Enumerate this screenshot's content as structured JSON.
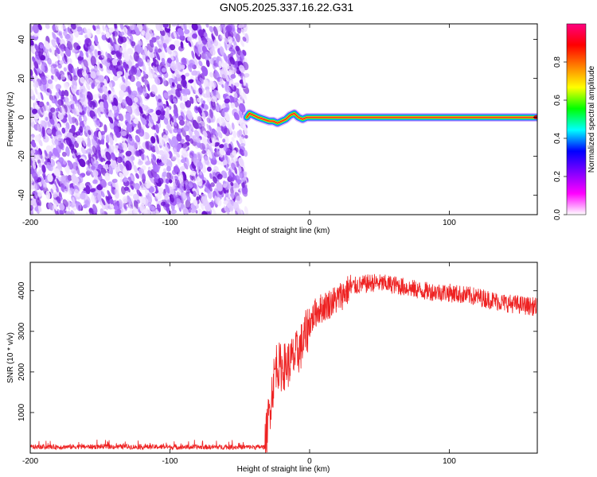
{
  "figure": {
    "title": "GN05.2025.337.16.22.G31"
  },
  "chart_data": [
    {
      "type": "heatmap",
      "xlabel": "Height of straight line (km)",
      "ylabel": "Frequency (Hz)",
      "xlim": [
        -200,
        163
      ],
      "ylim": [
        -50,
        48
      ],
      "x_ticks": [
        -200,
        -100,
        0,
        100
      ],
      "y_ticks": [
        -40,
        -20,
        0,
        20,
        40
      ],
      "grid": false,
      "noise_region_x": [
        -200,
        -45
      ],
      "signal_start_x": -45,
      "signal_track": [
        {
          "x": -45,
          "y": 0
        },
        {
          "x": -43,
          "y": 2
        },
        {
          "x": -40,
          "y": 1
        },
        {
          "x": -37,
          "y": 0
        },
        {
          "x": -33,
          "y": -1
        },
        {
          "x": -29,
          "y": -2
        },
        {
          "x": -26,
          "y": -2
        },
        {
          "x": -23,
          "y": -3
        },
        {
          "x": -20,
          "y": -2
        },
        {
          "x": -17,
          "y": -1
        },
        {
          "x": -14,
          "y": 1
        },
        {
          "x": -11,
          "y": 2
        },
        {
          "x": -8,
          "y": 0
        },
        {
          "x": -5,
          "y": -1
        },
        {
          "x": -2,
          "y": 0
        },
        {
          "x": 10,
          "y": 0
        },
        {
          "x": 163,
          "y": 0
        }
      ],
      "colorbar": {
        "label": "Normalized spectral amplitude",
        "ticks": [
          "0.0",
          "0.2",
          "0.4",
          "0.6",
          "0.8"
        ],
        "range": [
          0,
          1
        ],
        "colors": [
          "#ffffff",
          "#ff00ff",
          "#8000ff",
          "#0000ff",
          "#00ffff",
          "#00ff00",
          "#ffff00",
          "#ff8000",
          "#ff0000",
          "#ff0080"
        ]
      }
    },
    {
      "type": "line",
      "xlabel": "Height of straight line (km)",
      "ylabel": "SNR (10 * v/v)",
      "xlim": [
        -200,
        163
      ],
      "ylim": [
        0,
        4700
      ],
      "x_ticks": [
        -200,
        -100,
        0,
        100
      ],
      "y_ticks": [
        1000,
        2000,
        3000,
        4000
      ],
      "grid": false,
      "series_color": "#ee2222",
      "trend": [
        {
          "x": -200,
          "y": 150
        },
        {
          "x": -150,
          "y": 160
        },
        {
          "x": -100,
          "y": 150
        },
        {
          "x": -60,
          "y": 150
        },
        {
          "x": -32,
          "y": 150
        },
        {
          "x": -30,
          "y": 700
        },
        {
          "x": -27,
          "y": 1500
        },
        {
          "x": -24,
          "y": 2200
        },
        {
          "x": -20,
          "y": 2100
        },
        {
          "x": -15,
          "y": 2200
        },
        {
          "x": -10,
          "y": 2400
        },
        {
          "x": -5,
          "y": 2700
        },
        {
          "x": 0,
          "y": 3200
        },
        {
          "x": 5,
          "y": 3500
        },
        {
          "x": 10,
          "y": 3600
        },
        {
          "x": 20,
          "y": 3800
        },
        {
          "x": 30,
          "y": 4100
        },
        {
          "x": 45,
          "y": 4200
        },
        {
          "x": 60,
          "y": 4150
        },
        {
          "x": 80,
          "y": 4000
        },
        {
          "x": 100,
          "y": 3950
        },
        {
          "x": 120,
          "y": 3850
        },
        {
          "x": 140,
          "y": 3700
        },
        {
          "x": 163,
          "y": 3600
        }
      ]
    }
  ]
}
